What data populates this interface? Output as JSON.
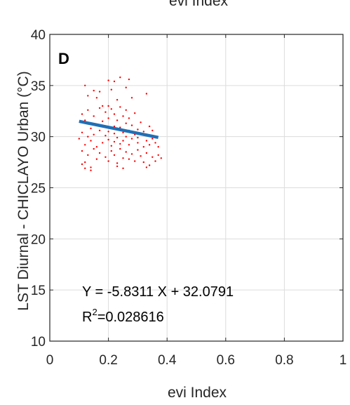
{
  "chart_data": {
    "type": "scatter",
    "top_caption": "evi Index",
    "panel_label": "D",
    "xlabel": "evi Index",
    "ylabel": "LST Diurnal - CHICLAYO Urban (°C)",
    "xlim": [
      0,
      1
    ],
    "ylim": [
      10,
      40
    ],
    "xticks": [
      0,
      0.2,
      0.4,
      0.6,
      0.8,
      1
    ],
    "xtick_labels": [
      "0",
      "0.2",
      "0.4",
      "0.6",
      "0.8",
      "1"
    ],
    "yticks": [
      10,
      15,
      20,
      25,
      30,
      35,
      40
    ],
    "ytick_labels": [
      "10",
      "15",
      "20",
      "25",
      "30",
      "35",
      "40"
    ],
    "grid": true,
    "series": [
      {
        "kind": "points",
        "color": "#ff0000",
        "points": [
          [
            0.12,
            35.0
          ],
          [
            0.13,
            34.0
          ],
          [
            0.15,
            34.5
          ],
          [
            0.16,
            33.8
          ],
          [
            0.17,
            34.4
          ],
          [
            0.18,
            33.0
          ],
          [
            0.2,
            35.5
          ],
          [
            0.21,
            34.6
          ],
          [
            0.22,
            35.4
          ],
          [
            0.23,
            33.6
          ],
          [
            0.24,
            35.8
          ],
          [
            0.26,
            34.8
          ],
          [
            0.27,
            35.6
          ],
          [
            0.28,
            33.8
          ],
          [
            0.33,
            34.2
          ],
          [
            0.11,
            32.2
          ],
          [
            0.12,
            31.6
          ],
          [
            0.13,
            32.6
          ],
          [
            0.14,
            30.8
          ],
          [
            0.15,
            32.0
          ],
          [
            0.16,
            31.2
          ],
          [
            0.17,
            32.8
          ],
          [
            0.18,
            31.5
          ],
          [
            0.19,
            32.4
          ],
          [
            0.2,
            33.0
          ],
          [
            0.2,
            31.8
          ],
          [
            0.21,
            32.7
          ],
          [
            0.22,
            31.0
          ],
          [
            0.22,
            32.2
          ],
          [
            0.23,
            31.6
          ],
          [
            0.24,
            32.9
          ],
          [
            0.24,
            30.9
          ],
          [
            0.25,
            32.0
          ],
          [
            0.26,
            31.3
          ],
          [
            0.26,
            32.6
          ],
          [
            0.27,
            31.8
          ],
          [
            0.28,
            31.1
          ],
          [
            0.29,
            32.3
          ],
          [
            0.3,
            30.7
          ],
          [
            0.31,
            31.4
          ],
          [
            0.32,
            30.5
          ],
          [
            0.34,
            31.0
          ],
          [
            0.35,
            30.6
          ],
          [
            0.1,
            29.8
          ],
          [
            0.11,
            30.4
          ],
          [
            0.12,
            29.2
          ],
          [
            0.13,
            30.0
          ],
          [
            0.14,
            29.6
          ],
          [
            0.15,
            30.2
          ],
          [
            0.16,
            29.0
          ],
          [
            0.17,
            30.6
          ],
          [
            0.18,
            29.4
          ],
          [
            0.19,
            30.1
          ],
          [
            0.2,
            29.7
          ],
          [
            0.2,
            30.5
          ],
          [
            0.21,
            29.1
          ],
          [
            0.22,
            30.3
          ],
          [
            0.22,
            29.5
          ],
          [
            0.23,
            30.8
          ],
          [
            0.23,
            29.9
          ],
          [
            0.24,
            29.3
          ],
          [
            0.25,
            30.4
          ],
          [
            0.25,
            29.6
          ],
          [
            0.26,
            30.0
          ],
          [
            0.27,
            29.2
          ],
          [
            0.27,
            30.6
          ],
          [
            0.28,
            29.8
          ],
          [
            0.29,
            30.2
          ],
          [
            0.3,
            29.4
          ],
          [
            0.3,
            29.9
          ],
          [
            0.31,
            30.3
          ],
          [
            0.32,
            29.0
          ],
          [
            0.33,
            29.6
          ],
          [
            0.34,
            29.2
          ],
          [
            0.35,
            29.8
          ],
          [
            0.36,
            29.4
          ],
          [
            0.37,
            29.0
          ],
          [
            0.11,
            28.6
          ],
          [
            0.12,
            27.5
          ],
          [
            0.13,
            28.2
          ],
          [
            0.14,
            27.0
          ],
          [
            0.15,
            28.8
          ],
          [
            0.16,
            27.8
          ],
          [
            0.17,
            28.4
          ],
          [
            0.19,
            28.0
          ],
          [
            0.2,
            27.6
          ],
          [
            0.21,
            28.6
          ],
          [
            0.22,
            28.2
          ],
          [
            0.23,
            27.4
          ],
          [
            0.24,
            28.8
          ],
          [
            0.25,
            27.9
          ],
          [
            0.26,
            28.5
          ],
          [
            0.27,
            27.8
          ],
          [
            0.28,
            28.3
          ],
          [
            0.29,
            27.6
          ],
          [
            0.3,
            28.7
          ],
          [
            0.31,
            28.1
          ],
          [
            0.32,
            27.5
          ],
          [
            0.33,
            28.4
          ],
          [
            0.34,
            27.2
          ],
          [
            0.35,
            28.0
          ],
          [
            0.36,
            27.6
          ],
          [
            0.37,
            28.2
          ],
          [
            0.38,
            27.9
          ],
          [
            0.11,
            27.3
          ],
          [
            0.12,
            26.9
          ],
          [
            0.14,
            26.7
          ],
          [
            0.23,
            27.1
          ],
          [
            0.25,
            26.9
          ],
          [
            0.33,
            27.0
          ]
        ]
      },
      {
        "kind": "fit_line",
        "color": "#1f6fb5",
        "x": [
          0.1,
          0.37
        ],
        "y": [
          31.5,
          29.92
        ]
      }
    ],
    "annotations": {
      "equation": "Y = -5.8311 X + 32.0791",
      "r2_prefix": "R",
      "r2_sup": "2",
      "r2_value": "=0.028616"
    }
  }
}
